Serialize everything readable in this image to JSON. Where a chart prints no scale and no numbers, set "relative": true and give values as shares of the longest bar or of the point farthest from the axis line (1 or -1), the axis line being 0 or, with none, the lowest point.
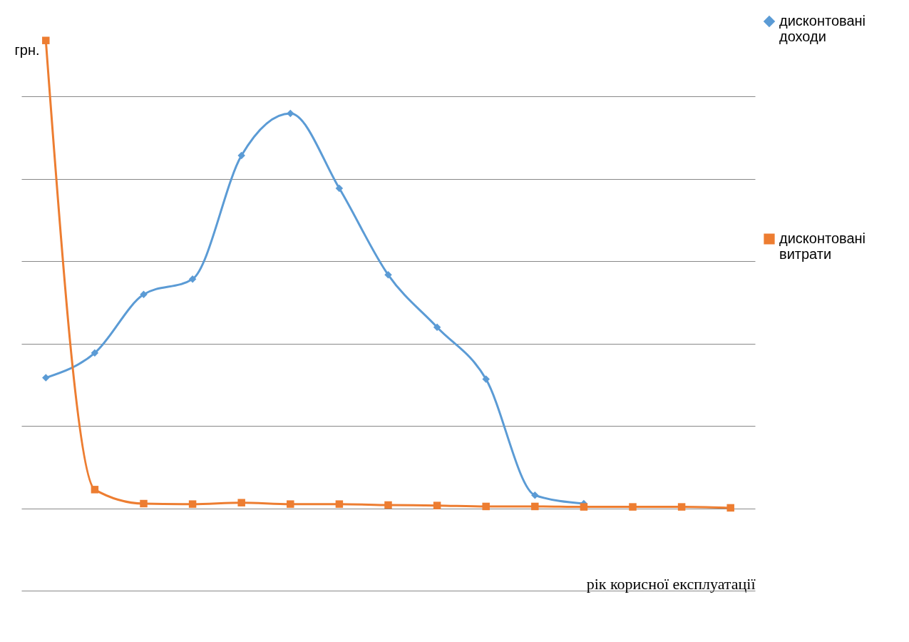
{
  "chart_data": {
    "type": "line",
    "relative": true,
    "ylabel": "грн.",
    "xlabel": "рік корисної експлуатації",
    "categories": [
      null,
      null,
      null,
      null,
      null,
      null,
      null,
      null,
      null,
      null,
      null,
      null,
      null,
      null,
      null
    ],
    "series": [
      {
        "name": "дисконтовані доходи",
        "color": "#5b9bd5",
        "marker": "diamond",
        "values": [
          0.279,
          0.332,
          0.457,
          0.49,
          0.754,
          0.844,
          0.684,
          0.499,
          0.387,
          0.276,
          0.028,
          0.01,
          null,
          null,
          null
        ]
      },
      {
        "name": "дисконтовані витрати",
        "color": "#ed7d31",
        "marker": "square",
        "values": [
          1,
          0.04,
          0.01,
          0.009,
          0.012,
          0.009,
          0.009,
          0.007,
          0.006,
          0.004,
          0.004,
          0.003,
          0.003,
          0.003,
          0.001
        ]
      }
    ],
    "grid": "y",
    "legend": "right",
    "line_style": "solid"
  }
}
